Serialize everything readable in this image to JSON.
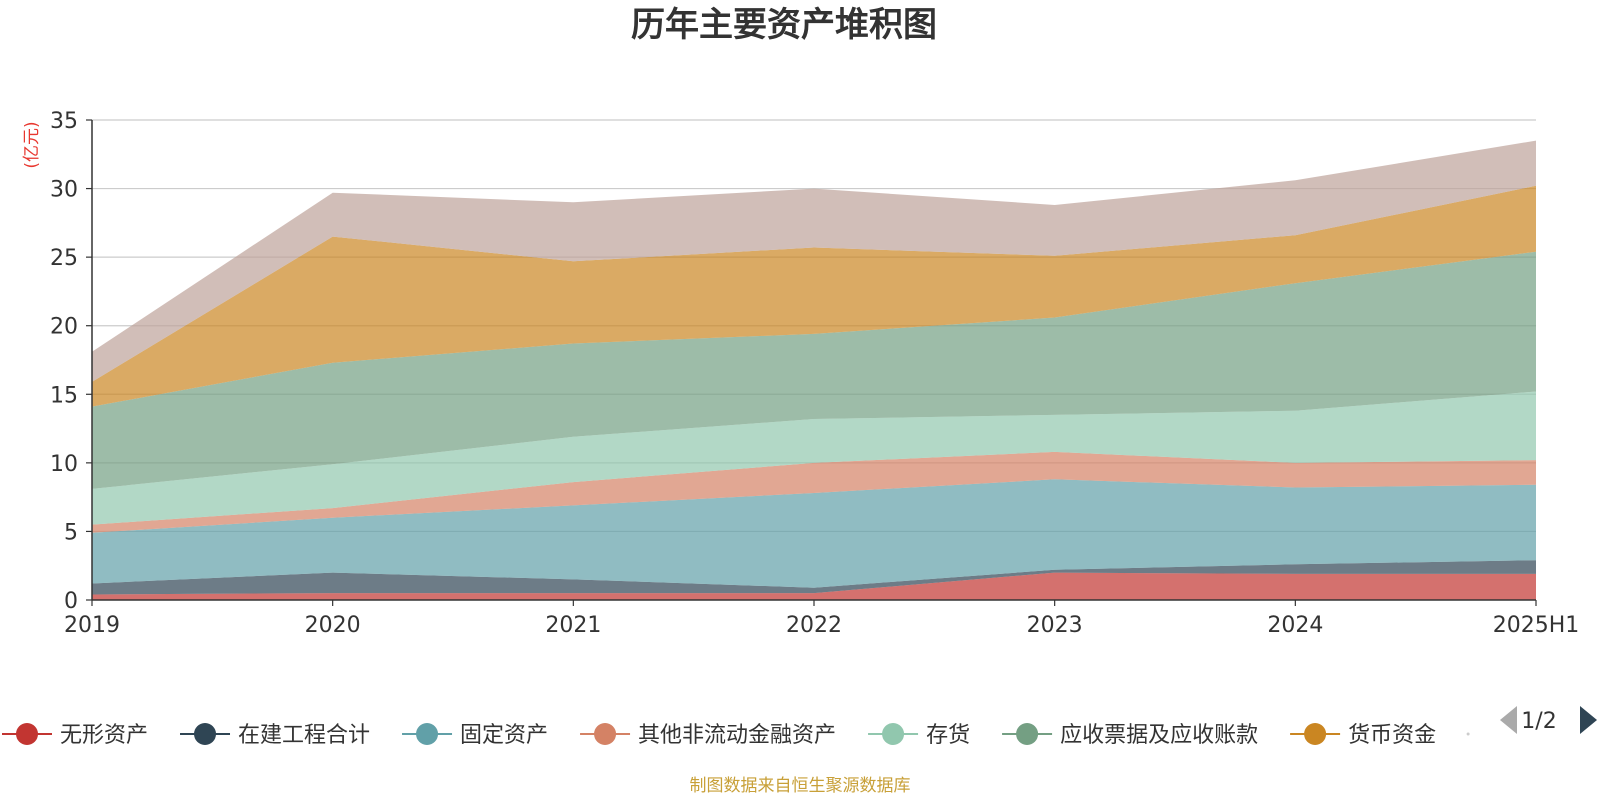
{
  "title": "历年主要资产堆积图",
  "unit_label": "(亿元)",
  "footer": "制图数据来自恒生聚源数据库",
  "legend_pager": {
    "text": "1/2",
    "prev_icon": "triangle-left-icon",
    "next_icon": "triangle-right-icon",
    "prev_color": "#aaaaaa",
    "next_color": "#2f4554"
  },
  "chart_data": {
    "type": "area",
    "stacked": true,
    "title": "历年主要资产堆积图",
    "ylabel": "(亿元)",
    "xlabel": "",
    "x": [
      "2019",
      "2020",
      "2021",
      "2022",
      "2023",
      "2024",
      "2025H1"
    ],
    "ylim": [
      0,
      35
    ],
    "yticks": [
      0,
      5,
      10,
      15,
      20,
      25,
      30,
      35
    ],
    "grid": true,
    "legend_position": "bottom",
    "series": [
      {
        "name": "无形资产",
        "color": "#c23531",
        "values": [
          0.4,
          0.5,
          0.5,
          0.5,
          2.0,
          1.9,
          1.9
        ]
      },
      {
        "name": "在建工程合计",
        "color": "#2f4554",
        "values": [
          0.8,
          1.5,
          1.0,
          0.4,
          0.2,
          0.7,
          1.0
        ]
      },
      {
        "name": "固定资产",
        "color": "#61a0a8",
        "values": [
          3.7,
          4.0,
          5.4,
          6.9,
          6.6,
          5.6,
          5.5
        ]
      },
      {
        "name": "其他非流动金融资产",
        "color": "#d48265",
        "values": [
          0.6,
          0.7,
          1.7,
          2.2,
          2.0,
          1.8,
          1.8
        ]
      },
      {
        "name": "存货",
        "color": "#91c7ae",
        "values": [
          2.6,
          3.2,
          3.3,
          3.2,
          2.7,
          3.8,
          5.0
        ]
      },
      {
        "name": "应收票据及应收账款",
        "color": "#749f83",
        "values": [
          6.0,
          7.4,
          6.8,
          6.2,
          7.1,
          9.3,
          10.2
        ]
      },
      {
        "name": "货币资金",
        "color": "#ca8622",
        "values": [
          1.8,
          9.2,
          6.0,
          6.3,
          4.5,
          3.5,
          4.8
        ]
      },
      {
        "name": "",
        "color": "#bda29a",
        "values": [
          2.2,
          3.2,
          4.3,
          4.3,
          3.7,
          4.0,
          3.3
        ]
      }
    ]
  }
}
